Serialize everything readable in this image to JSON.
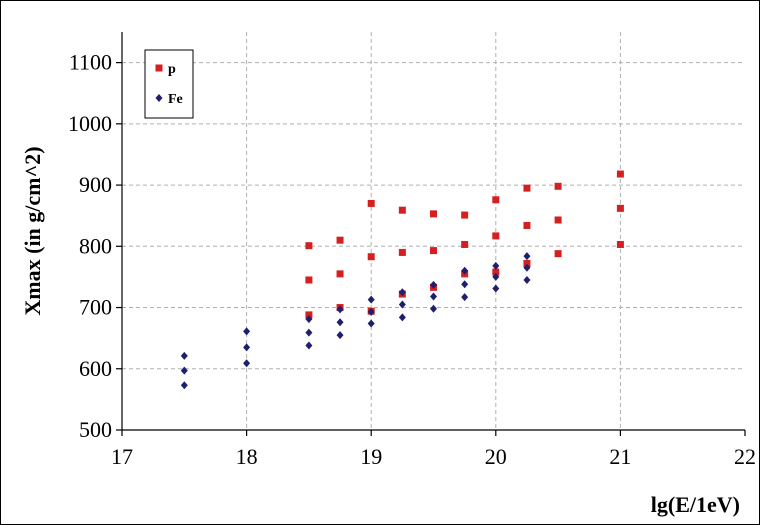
{
  "chart_data": {
    "type": "scatter",
    "xlabel": "lg(E/1eV)",
    "ylabel": "Xmax (in g/cm^2)",
    "xlim": [
      17,
      22
    ],
    "ylim": [
      500,
      1150
    ],
    "xticks": [
      "17",
      "18",
      "19",
      "20",
      "21",
      "22"
    ],
    "yticks": [
      "500",
      "600",
      "700",
      "800",
      "900",
      "1000",
      "1100"
    ],
    "grid": true,
    "legend_position": "top-left",
    "series": [
      {
        "name": "p",
        "color": "#d42020",
        "marker": "square",
        "points": [
          [
            18.5,
            801
          ],
          [
            18.5,
            745
          ],
          [
            18.5,
            688
          ],
          [
            18.75,
            810
          ],
          [
            18.75,
            755
          ],
          [
            18.75,
            700
          ],
          [
            19,
            870
          ],
          [
            19,
            783
          ],
          [
            19,
            694
          ],
          [
            19.25,
            859
          ],
          [
            19.25,
            790
          ],
          [
            19.25,
            722
          ],
          [
            19.5,
            853
          ],
          [
            19.5,
            793
          ],
          [
            19.5,
            733
          ],
          [
            19.75,
            851
          ],
          [
            19.75,
            803
          ],
          [
            19.75,
            755
          ],
          [
            20,
            876
          ],
          [
            20,
            817
          ],
          [
            20,
            758
          ],
          [
            20.25,
            895
          ],
          [
            20.25,
            834
          ],
          [
            20.25,
            772
          ],
          [
            20.5,
            898
          ],
          [
            20.5,
            843
          ],
          [
            20.5,
            788
          ],
          [
            21,
            918
          ],
          [
            21,
            862
          ],
          [
            21,
            803
          ]
        ]
      },
      {
        "name": "Fe",
        "color": "#1f1f6e",
        "marker": "diamond",
        "points": [
          [
            17.5,
            621
          ],
          [
            17.5,
            597
          ],
          [
            17.5,
            573
          ],
          [
            18,
            661
          ],
          [
            18,
            635
          ],
          [
            18,
            609
          ],
          [
            18.5,
            681
          ],
          [
            18.5,
            659
          ],
          [
            18.5,
            638
          ],
          [
            18.75,
            697
          ],
          [
            18.75,
            676
          ],
          [
            18.75,
            655
          ],
          [
            19,
            713
          ],
          [
            19,
            693
          ],
          [
            19,
            674
          ],
          [
            19.25,
            725
          ],
          [
            19.25,
            705
          ],
          [
            19.25,
            684
          ],
          [
            19.5,
            737
          ],
          [
            19.5,
            718
          ],
          [
            19.5,
            698
          ],
          [
            19.75,
            760
          ],
          [
            19.75,
            738
          ],
          [
            19.75,
            717
          ],
          [
            20,
            768
          ],
          [
            20,
            750
          ],
          [
            20,
            731
          ],
          [
            20.25,
            784
          ],
          [
            20.25,
            765
          ],
          [
            20.25,
            745
          ]
        ]
      }
    ]
  }
}
